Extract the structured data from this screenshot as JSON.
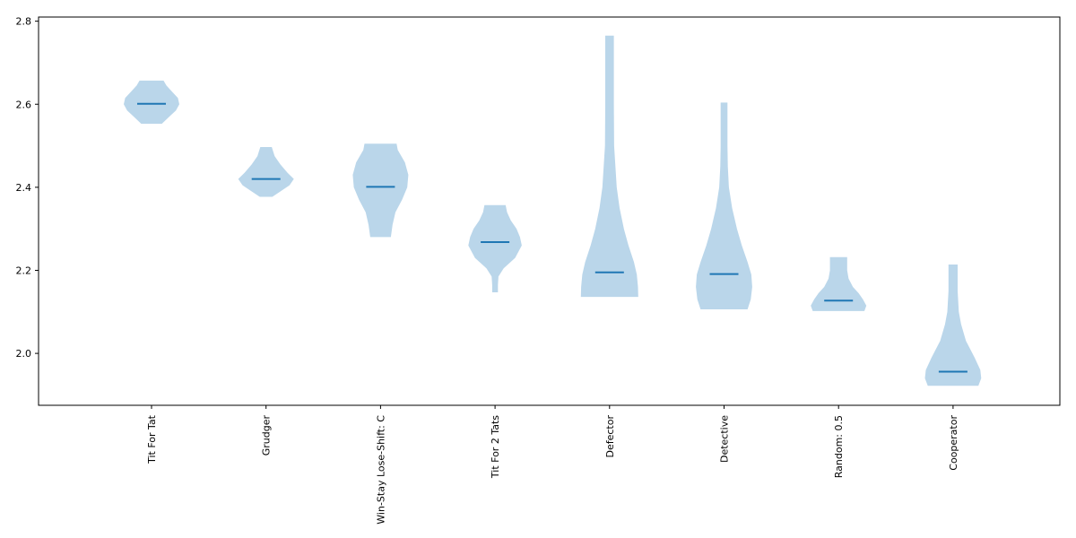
{
  "chart_data": {
    "type": "violin",
    "categories": [
      "Tit For Tat",
      "Grudger",
      "Win-Stay Lose-Shift: C",
      "Tit For 2 Tats",
      "Defector",
      "Detective",
      "Random: 0.5",
      "Cooperator"
    ],
    "ylim": [
      1.875,
      2.81
    ],
    "yticks": [
      {
        "value": 2.0,
        "label": "2.0"
      },
      {
        "value": 2.2,
        "label": "2.2"
      },
      {
        "value": 2.4,
        "label": "2.4"
      },
      {
        "value": 2.6,
        "label": "2.6"
      },
      {
        "value": 2.8,
        "label": "2.8"
      }
    ],
    "series": [
      {
        "category": "Tit For Tat",
        "mean": 2.601,
        "profile": [
          [
            2.553,
            0.36
          ],
          [
            2.57,
            0.62
          ],
          [
            2.585,
            0.85
          ],
          [
            2.6,
            0.97
          ],
          [
            2.615,
            0.92
          ],
          [
            2.63,
            0.72
          ],
          [
            2.645,
            0.52
          ],
          [
            2.657,
            0.42
          ]
        ]
      },
      {
        "category": "Grudger",
        "mean": 2.42,
        "profile": [
          [
            2.377,
            0.22
          ],
          [
            2.39,
            0.5
          ],
          [
            2.405,
            0.82
          ],
          [
            2.42,
            0.97
          ],
          [
            2.435,
            0.75
          ],
          [
            2.455,
            0.5
          ],
          [
            2.475,
            0.3
          ],
          [
            2.497,
            0.2
          ]
        ]
      },
      {
        "category": "Win-Stay Lose-Shift: C",
        "mean": 2.401,
        "profile": [
          [
            2.28,
            0.36
          ],
          [
            2.31,
            0.42
          ],
          [
            2.34,
            0.52
          ],
          [
            2.37,
            0.75
          ],
          [
            2.4,
            0.93
          ],
          [
            2.43,
            0.97
          ],
          [
            2.46,
            0.85
          ],
          [
            2.49,
            0.6
          ],
          [
            2.505,
            0.56
          ]
        ]
      },
      {
        "category": "Tit For 2 Tats",
        "mean": 2.268,
        "profile": [
          [
            2.147,
            0.1
          ],
          [
            2.165,
            0.1
          ],
          [
            2.185,
            0.12
          ],
          [
            2.205,
            0.3
          ],
          [
            2.23,
            0.7
          ],
          [
            2.26,
            0.93
          ],
          [
            2.28,
            0.87
          ],
          [
            2.3,
            0.75
          ],
          [
            2.32,
            0.55
          ],
          [
            2.34,
            0.42
          ],
          [
            2.357,
            0.37
          ]
        ]
      },
      {
        "category": "Defector",
        "mean": 2.195,
        "profile": [
          [
            2.136,
            1.0
          ],
          [
            2.16,
            0.99
          ],
          [
            2.19,
            0.95
          ],
          [
            2.22,
            0.85
          ],
          [
            2.26,
            0.66
          ],
          [
            2.3,
            0.5
          ],
          [
            2.35,
            0.35
          ],
          [
            2.4,
            0.25
          ],
          [
            2.5,
            0.16
          ],
          [
            2.6,
            0.15
          ],
          [
            2.7,
            0.15
          ],
          [
            2.765,
            0.15
          ]
        ]
      },
      {
        "category": "Detective",
        "mean": 2.191,
        "profile": [
          [
            2.106,
            0.82
          ],
          [
            2.13,
            0.93
          ],
          [
            2.16,
            0.98
          ],
          [
            2.19,
            0.95
          ],
          [
            2.22,
            0.82
          ],
          [
            2.26,
            0.62
          ],
          [
            2.3,
            0.45
          ],
          [
            2.35,
            0.28
          ],
          [
            2.4,
            0.17
          ],
          [
            2.45,
            0.13
          ],
          [
            2.5,
            0.12
          ],
          [
            2.55,
            0.12
          ],
          [
            2.604,
            0.12
          ]
        ]
      },
      {
        "category": "Random: 0.5",
        "mean": 2.127,
        "profile": [
          [
            2.102,
            0.9
          ],
          [
            2.115,
            0.97
          ],
          [
            2.13,
            0.85
          ],
          [
            2.145,
            0.7
          ],
          [
            2.16,
            0.5
          ],
          [
            2.18,
            0.35
          ],
          [
            2.2,
            0.3
          ],
          [
            2.22,
            0.3
          ],
          [
            2.232,
            0.3
          ]
        ]
      },
      {
        "category": "Cooperator",
        "mean": 1.956,
        "profile": [
          [
            1.922,
            0.88
          ],
          [
            1.94,
            0.98
          ],
          [
            1.96,
            0.95
          ],
          [
            1.99,
            0.75
          ],
          [
            2.03,
            0.45
          ],
          [
            2.07,
            0.28
          ],
          [
            2.1,
            0.2
          ],
          [
            2.15,
            0.16
          ],
          [
            2.214,
            0.16
          ]
        ]
      }
    ],
    "colors": {
      "violin_fill": "#bad6ea",
      "mean_line": "#1f77b4",
      "axes": "#000000"
    },
    "xlabel": "",
    "ylabel": "",
    "title": ""
  }
}
